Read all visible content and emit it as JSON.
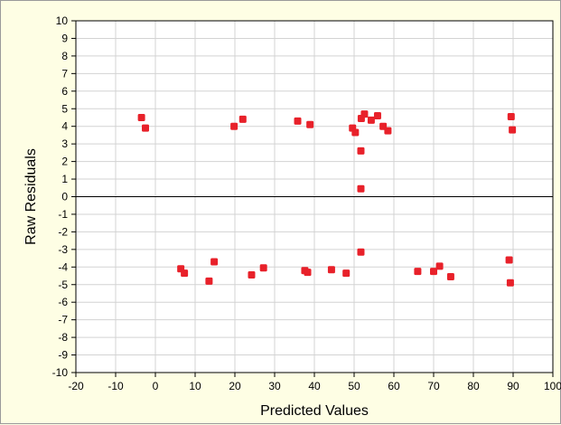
{
  "chart_data": {
    "type": "scatter",
    "title": "",
    "xlabel": "Predicted Values",
    "ylabel": "Raw Residuals",
    "xlim": [
      -20,
      100
    ],
    "ylim": [
      -10,
      10
    ],
    "x_ticks": [
      -20,
      -10,
      0,
      10,
      20,
      30,
      40,
      50,
      60,
      70,
      80,
      90,
      100
    ],
    "y_ticks": [
      10,
      9,
      8,
      7,
      6,
      5,
      4,
      3,
      2,
      1,
      0,
      -1,
      -2,
      -3,
      -4,
      -5,
      -6,
      -7,
      -8,
      -9,
      -10
    ],
    "grid": true,
    "reference_line_y": 0,
    "marker_color": "#e8212a",
    "series": [
      {
        "points": [
          [
            -3.5,
            4.5
          ],
          [
            -2.5,
            3.9
          ],
          [
            19.8,
            4.0
          ],
          [
            22.0,
            4.4
          ],
          [
            35.8,
            4.3
          ],
          [
            38.9,
            4.1
          ],
          [
            49.6,
            3.9
          ],
          [
            50.3,
            3.65
          ],
          [
            51.8,
            4.45
          ],
          [
            52.6,
            4.7
          ],
          [
            54.3,
            4.35
          ],
          [
            55.9,
            4.6
          ],
          [
            57.3,
            4.0
          ],
          [
            58.5,
            3.75
          ],
          [
            51.7,
            2.6
          ],
          [
            51.7,
            0.45
          ],
          [
            51.7,
            -3.15
          ],
          [
            89.5,
            4.55
          ],
          [
            89.8,
            3.8
          ],
          [
            6.4,
            -4.1
          ],
          [
            7.3,
            -4.35
          ],
          [
            13.5,
            -4.8
          ],
          [
            14.8,
            -3.7
          ],
          [
            24.2,
            -4.45
          ],
          [
            27.2,
            -4.05
          ],
          [
            37.6,
            -4.2
          ],
          [
            38.3,
            -4.3
          ],
          [
            44.3,
            -4.15
          ],
          [
            48.0,
            -4.35
          ],
          [
            66.0,
            -4.25
          ],
          [
            70.0,
            -4.25
          ],
          [
            71.5,
            -3.95
          ],
          [
            74.3,
            -4.55
          ],
          [
            89.0,
            -3.6
          ],
          [
            89.3,
            -4.9
          ]
        ]
      }
    ]
  }
}
